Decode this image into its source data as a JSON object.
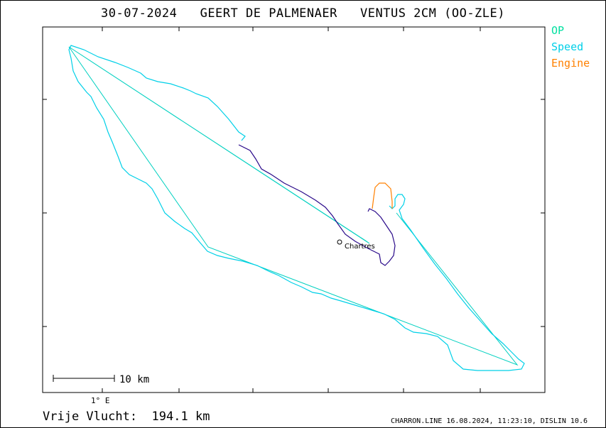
{
  "header": {
    "date": "30-07-2024",
    "pilot": "GEERT DE PALMENAER",
    "glider": "VENTUS 2CM (OO-ZLE)"
  },
  "legend": [
    {
      "label": "OP",
      "color": "#00e0a0"
    },
    {
      "label": "Speed",
      "color": "#00d0e8"
    },
    {
      "label": "Engine",
      "color": "#ff8000"
    }
  ],
  "map": {
    "waypoint_label": "Chartres",
    "scale_label": "10 km",
    "x_tick_label": "1° E"
  },
  "colors": {
    "track": "#00d0e8",
    "task": "#00d0c0",
    "climb": "#2a0a8a",
    "engine": "#ff8000"
  },
  "summary": {
    "label": "Vrije Vlucht:",
    "value": "194.1 km"
  },
  "footer": "CHARRON.LINE 16.08.2024, 11:23:10, DISLIN 10.6"
}
